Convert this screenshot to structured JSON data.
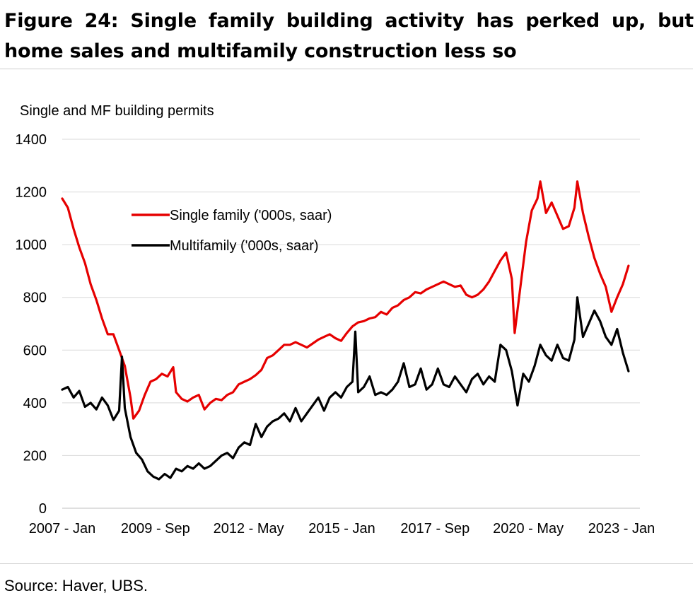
{
  "header": {
    "title": "Figure 24: Single family building activity has perked up, but home sales and multifamily construction less so"
  },
  "footer": {
    "source": "Source: Haver, UBS."
  },
  "chart_data": {
    "type": "line",
    "ylabel": "Single and MF building permits",
    "ylim": [
      0,
      1400
    ],
    "yticks": [
      0,
      200,
      400,
      600,
      800,
      1000,
      1200,
      1400
    ],
    "xlim": [
      "2007-01",
      "2023-12"
    ],
    "xticks": [
      "2007 - Jan",
      "2009 - Sep",
      "2012 - May",
      "2015 - Jan",
      "2017 - Sep",
      "2020 - May",
      "2023 - Jan"
    ],
    "grid": "horizontal",
    "legend_position": "upper-left",
    "series": [
      {
        "name": "Single family ('000s, saar)",
        "color": "#e60000",
        "points": [
          [
            "2007-01",
            1175
          ],
          [
            "2007-03",
            1140
          ],
          [
            "2007-05",
            1060
          ],
          [
            "2007-07",
            990
          ],
          [
            "2007-09",
            930
          ],
          [
            "2007-11",
            850
          ],
          [
            "2008-01",
            790
          ],
          [
            "2008-03",
            720
          ],
          [
            "2008-05",
            660
          ],
          [
            "2008-07",
            660
          ],
          [
            "2008-09",
            600
          ],
          [
            "2008-11",
            540
          ],
          [
            "2009-01",
            420
          ],
          [
            "2009-02",
            340
          ],
          [
            "2009-04",
            370
          ],
          [
            "2009-06",
            430
          ],
          [
            "2009-08",
            480
          ],
          [
            "2009-10",
            490
          ],
          [
            "2009-12",
            510
          ],
          [
            "2010-02",
            500
          ],
          [
            "2010-04",
            535
          ],
          [
            "2010-05",
            440
          ],
          [
            "2010-07",
            415
          ],
          [
            "2010-09",
            405
          ],
          [
            "2010-11",
            420
          ],
          [
            "2011-01",
            430
          ],
          [
            "2011-03",
            375
          ],
          [
            "2011-05",
            400
          ],
          [
            "2011-07",
            415
          ],
          [
            "2011-09",
            410
          ],
          [
            "2011-11",
            430
          ],
          [
            "2012-01",
            440
          ],
          [
            "2012-03",
            470
          ],
          [
            "2012-05",
            480
          ],
          [
            "2012-07",
            490
          ],
          [
            "2012-09",
            505
          ],
          [
            "2012-11",
            525
          ],
          [
            "2013-01",
            570
          ],
          [
            "2013-03",
            580
          ],
          [
            "2013-05",
            600
          ],
          [
            "2013-07",
            620
          ],
          [
            "2013-09",
            620
          ],
          [
            "2013-11",
            630
          ],
          [
            "2014-01",
            620
          ],
          [
            "2014-03",
            610
          ],
          [
            "2014-05",
            625
          ],
          [
            "2014-07",
            640
          ],
          [
            "2014-09",
            650
          ],
          [
            "2014-11",
            660
          ],
          [
            "2015-01",
            645
          ],
          [
            "2015-03",
            635
          ],
          [
            "2015-05",
            665
          ],
          [
            "2015-07",
            690
          ],
          [
            "2015-09",
            705
          ],
          [
            "2015-11",
            710
          ],
          [
            "2016-01",
            720
          ],
          [
            "2016-03",
            725
          ],
          [
            "2016-05",
            745
          ],
          [
            "2016-07",
            735
          ],
          [
            "2016-09",
            760
          ],
          [
            "2016-11",
            770
          ],
          [
            "2017-01",
            790
          ],
          [
            "2017-03",
            800
          ],
          [
            "2017-05",
            820
          ],
          [
            "2017-07",
            815
          ],
          [
            "2017-09",
            830
          ],
          [
            "2017-11",
            840
          ],
          [
            "2018-01",
            850
          ],
          [
            "2018-03",
            860
          ],
          [
            "2018-05",
            850
          ],
          [
            "2018-07",
            840
          ],
          [
            "2018-09",
            845
          ],
          [
            "2018-11",
            810
          ],
          [
            "2019-01",
            800
          ],
          [
            "2019-03",
            810
          ],
          [
            "2019-05",
            830
          ],
          [
            "2019-07",
            860
          ],
          [
            "2019-09",
            900
          ],
          [
            "2019-11",
            940
          ],
          [
            "2020-01",
            970
          ],
          [
            "2020-03",
            870
          ],
          [
            "2020-04",
            665
          ],
          [
            "2020-06",
            840
          ],
          [
            "2020-08",
            1010
          ],
          [
            "2020-10",
            1130
          ],
          [
            "2020-12",
            1175
          ],
          [
            "2021-01",
            1240
          ],
          [
            "2021-03",
            1120
          ],
          [
            "2021-05",
            1160
          ],
          [
            "2021-07",
            1110
          ],
          [
            "2021-09",
            1060
          ],
          [
            "2021-11",
            1070
          ],
          [
            "2022-01",
            1140
          ],
          [
            "2022-02",
            1240
          ],
          [
            "2022-04",
            1120
          ],
          [
            "2022-06",
            1030
          ],
          [
            "2022-08",
            950
          ],
          [
            "2022-10",
            890
          ],
          [
            "2022-12",
            840
          ],
          [
            "2023-02",
            745
          ],
          [
            "2023-04",
            800
          ],
          [
            "2023-06",
            850
          ],
          [
            "2023-08",
            920
          ]
        ]
      },
      {
        "name": "Multifamily ('000s, saar)",
        "color": "#000000",
        "points": [
          [
            "2007-01",
            450
          ],
          [
            "2007-03",
            460
          ],
          [
            "2007-05",
            420
          ],
          [
            "2007-07",
            445
          ],
          [
            "2007-09",
            385
          ],
          [
            "2007-11",
            400
          ],
          [
            "2008-01",
            375
          ],
          [
            "2008-03",
            420
          ],
          [
            "2008-05",
            390
          ],
          [
            "2008-07",
            335
          ],
          [
            "2008-09",
            370
          ],
          [
            "2008-10",
            575
          ],
          [
            "2008-11",
            380
          ],
          [
            "2009-01",
            270
          ],
          [
            "2009-03",
            210
          ],
          [
            "2009-05",
            185
          ],
          [
            "2009-07",
            140
          ],
          [
            "2009-09",
            120
          ],
          [
            "2009-11",
            110
          ],
          [
            "2010-01",
            130
          ],
          [
            "2010-03",
            115
          ],
          [
            "2010-05",
            150
          ],
          [
            "2010-07",
            140
          ],
          [
            "2010-09",
            160
          ],
          [
            "2010-11",
            150
          ],
          [
            "2011-01",
            170
          ],
          [
            "2011-03",
            150
          ],
          [
            "2011-05",
            160
          ],
          [
            "2011-07",
            180
          ],
          [
            "2011-09",
            200
          ],
          [
            "2011-11",
            210
          ],
          [
            "2012-01",
            190
          ],
          [
            "2012-03",
            230
          ],
          [
            "2012-05",
            250
          ],
          [
            "2012-07",
            240
          ],
          [
            "2012-09",
            320
          ],
          [
            "2012-11",
            270
          ],
          [
            "2013-01",
            310
          ],
          [
            "2013-03",
            330
          ],
          [
            "2013-05",
            340
          ],
          [
            "2013-07",
            360
          ],
          [
            "2013-09",
            330
          ],
          [
            "2013-11",
            380
          ],
          [
            "2014-01",
            330
          ],
          [
            "2014-03",
            360
          ],
          [
            "2014-05",
            390
          ],
          [
            "2014-07",
            420
          ],
          [
            "2014-09",
            370
          ],
          [
            "2014-11",
            420
          ],
          [
            "2015-01",
            440
          ],
          [
            "2015-03",
            420
          ],
          [
            "2015-05",
            460
          ],
          [
            "2015-07",
            480
          ],
          [
            "2015-08",
            670
          ],
          [
            "2015-09",
            440
          ],
          [
            "2015-11",
            460
          ],
          [
            "2016-01",
            500
          ],
          [
            "2016-03",
            430
          ],
          [
            "2016-05",
            440
          ],
          [
            "2016-07",
            430
          ],
          [
            "2016-09",
            450
          ],
          [
            "2016-11",
            480
          ],
          [
            "2017-01",
            550
          ],
          [
            "2017-03",
            460
          ],
          [
            "2017-05",
            470
          ],
          [
            "2017-07",
            530
          ],
          [
            "2017-09",
            450
          ],
          [
            "2017-11",
            470
          ],
          [
            "2018-01",
            530
          ],
          [
            "2018-03",
            470
          ],
          [
            "2018-05",
            460
          ],
          [
            "2018-07",
            500
          ],
          [
            "2018-09",
            470
          ],
          [
            "2018-11",
            440
          ],
          [
            "2019-01",
            490
          ],
          [
            "2019-03",
            510
          ],
          [
            "2019-05",
            470
          ],
          [
            "2019-07",
            500
          ],
          [
            "2019-09",
            480
          ],
          [
            "2019-11",
            620
          ],
          [
            "2020-01",
            600
          ],
          [
            "2020-03",
            520
          ],
          [
            "2020-05",
            390
          ],
          [
            "2020-07",
            510
          ],
          [
            "2020-09",
            480
          ],
          [
            "2020-11",
            540
          ],
          [
            "2021-01",
            620
          ],
          [
            "2021-03",
            580
          ],
          [
            "2021-05",
            560
          ],
          [
            "2021-07",
            620
          ],
          [
            "2021-09",
            570
          ],
          [
            "2021-11",
            560
          ],
          [
            "2022-01",
            640
          ],
          [
            "2022-02",
            800
          ],
          [
            "2022-04",
            650
          ],
          [
            "2022-06",
            700
          ],
          [
            "2022-08",
            750
          ],
          [
            "2022-10",
            710
          ],
          [
            "2022-12",
            650
          ],
          [
            "2023-02",
            620
          ],
          [
            "2023-04",
            680
          ],
          [
            "2023-06",
            590
          ],
          [
            "2023-08",
            520
          ]
        ]
      }
    ]
  }
}
